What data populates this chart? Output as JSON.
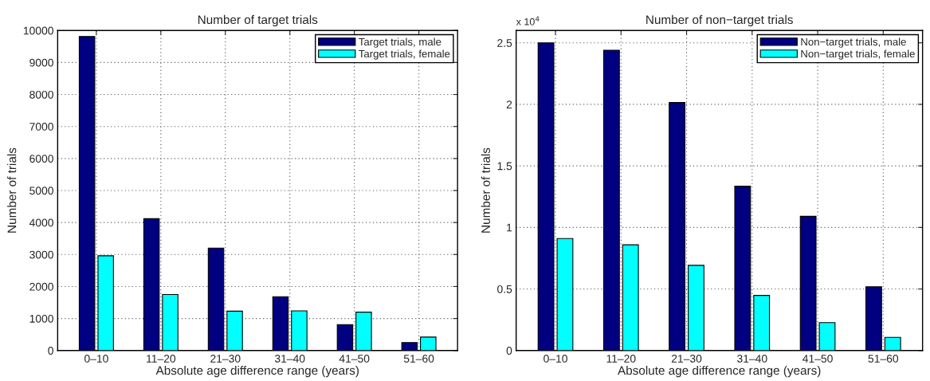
{
  "chart_data": [
    {
      "type": "bar",
      "title": "Number of target trials",
      "xlabel": "Absolute age difference range (years)",
      "ylabel": "Number of trials",
      "categories": [
        "0–10",
        "11–20",
        "21–30",
        "31–40",
        "41–50",
        "51–60"
      ],
      "series": [
        {
          "name": "Target trials, male",
          "color": "#000080",
          "values": [
            9810,
            4120,
            3200,
            1680,
            810,
            250
          ]
        },
        {
          "name": "Target trials, female",
          "color": "#00ffff",
          "values": [
            2960,
            1750,
            1230,
            1240,
            1200,
            420
          ]
        }
      ],
      "ylim": [
        0,
        10000
      ],
      "yticks": [
        0,
        1000,
        2000,
        3000,
        4000,
        5000,
        6000,
        7000,
        8000,
        9000,
        10000
      ],
      "grid": true,
      "legend": "top right"
    },
    {
      "type": "bar",
      "title": "Number of non−target trials",
      "xlabel": "Absolute age difference range (years)",
      "ylabel": "Number of trials",
      "annotations": [
        "x 10$^{4}$"
      ],
      "categories": [
        "0–10",
        "11–20",
        "21–30",
        "31–40",
        "41–50",
        "51–60"
      ],
      "series": [
        {
          "name": "Non−target trials, male",
          "color": "#000080",
          "values": [
            2.5,
            2.44,
            2.015,
            1.335,
            1.09,
            0.518
          ]
        },
        {
          "name": "Non−target trials, female",
          "color": "#00ffff",
          "values": [
            0.91,
            0.859,
            0.692,
            0.448,
            0.227,
            0.107
          ]
        }
      ],
      "ylim": [
        0,
        2.6
      ],
      "yticks": [
        0,
        0.5,
        1,
        1.5,
        2,
        2.5
      ],
      "grid": true,
      "legend": "top right"
    }
  ]
}
